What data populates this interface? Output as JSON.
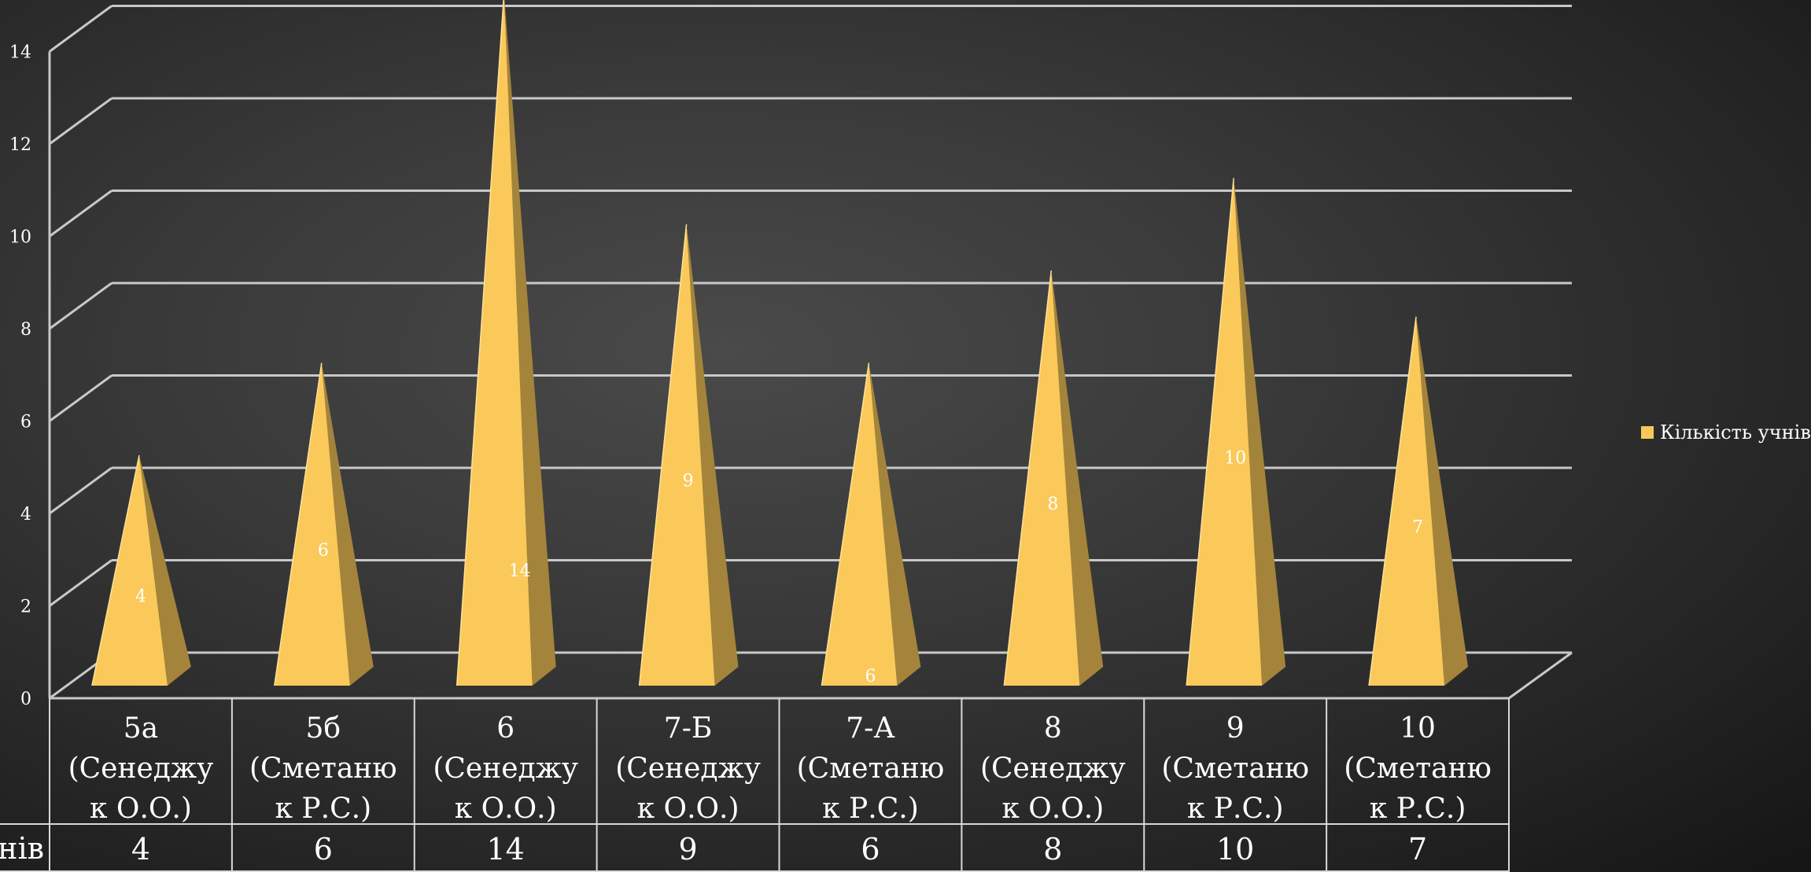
{
  "chart_data": {
    "type": "bar",
    "categories": [
      [
        "5а",
        "(Сенеджу",
        "к О.О.)"
      ],
      [
        "5б",
        "(Сметаню",
        "к Р.С.)"
      ],
      [
        "6",
        "(Сенеджу",
        "к О.О.)"
      ],
      [
        "7-Б",
        "(Сенеджу",
        "к О.О.)"
      ],
      [
        "7-А",
        "(Сметаню",
        "к Р.С.)"
      ],
      [
        "8",
        "(Сенеджу",
        "к О.О.)"
      ],
      [
        "9",
        "(Сметаню",
        "к Р.С.)"
      ],
      [
        "10",
        "(Сметаню",
        "к Р.С.)"
      ]
    ],
    "series": [
      {
        "name": "Кількість учнів",
        "values": [
          4,
          6,
          14,
          9,
          6,
          8,
          10,
          7
        ],
        "color": "#f8c85a"
      }
    ],
    "data_labels": [
      "4",
      "6",
      "14",
      "9",
      "6",
      "8",
      "10",
      "7"
    ],
    "y_ticks": [
      "0",
      "2",
      "4",
      "6",
      "8",
      "10",
      "12",
      "14"
    ],
    "ylim": [
      0,
      14
    ],
    "table_row_label": "нів",
    "grid": true,
    "legend_position": "right",
    "bar_shape": "pyramid-3d"
  }
}
